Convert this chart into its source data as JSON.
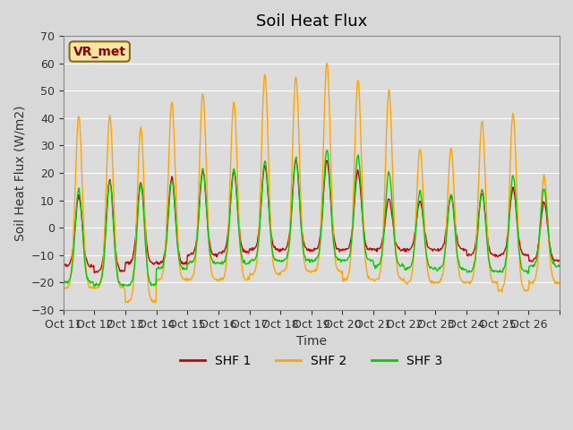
{
  "title": "Soil Heat Flux",
  "ylabel": "Soil Heat Flux (W/m2)",
  "xlabel": "Time",
  "ylim": [
    -30,
    70
  ],
  "yticks": [
    -30,
    -20,
    -10,
    0,
    10,
    20,
    30,
    40,
    50,
    60,
    70
  ],
  "xtick_labels": [
    "Oct 11",
    "Oct 12",
    "Oct 13",
    "Oct 14",
    "Oct 15",
    "Oct 16",
    "Oct 17",
    "Oct 18",
    "Oct 19",
    "Oct 20",
    "Oct 21",
    "Oct 22",
    "Oct 23",
    "Oct 24",
    "Oct 25",
    "Oct 26",
    ""
  ],
  "shf1_color": "#cc0000",
  "shf2_color": "#ffa500",
  "shf3_color": "#00cc00",
  "legend_label1": "SHF 1",
  "legend_label2": "SHF 2",
  "legend_label3": "SHF 3",
  "annotation_text": "VR_met",
  "n_days": 16,
  "pts_per_day": 48,
  "title_fontsize": 13,
  "axis_fontsize": 10,
  "tick_fontsize": 9,
  "legend_fontsize": 10,
  "shf2_peaks": [
    42,
    42,
    38,
    47,
    50,
    47,
    57,
    56,
    61,
    55,
    51,
    30,
    30,
    40,
    43,
    20
  ],
  "shf2_night": [
    -22,
    -22,
    -27,
    -19,
    -19,
    -19,
    -17,
    -16,
    -16,
    -19,
    -19,
    -20,
    -20,
    -20,
    -23,
    -20
  ],
  "shf1_peaks": [
    12,
    18,
    17,
    19,
    21,
    21,
    23,
    25,
    25,
    21,
    11,
    10,
    12,
    13,
    15,
    10
  ],
  "shf1_night": [
    -14,
    -16,
    -13,
    -13,
    -10,
    -9,
    -8,
    -8,
    -8,
    -8,
    -8,
    -8,
    -8,
    -10,
    -10,
    -12
  ],
  "shf3_peaks": [
    15,
    18,
    17,
    18,
    22,
    22,
    25,
    26,
    29,
    27,
    21,
    14,
    13,
    15,
    20,
    15
  ],
  "shf3_night": [
    -20,
    -21,
    -21,
    -15,
    -13,
    -13,
    -12,
    -12,
    -12,
    -12,
    -14,
    -15,
    -15,
    -16,
    -16,
    -14
  ]
}
